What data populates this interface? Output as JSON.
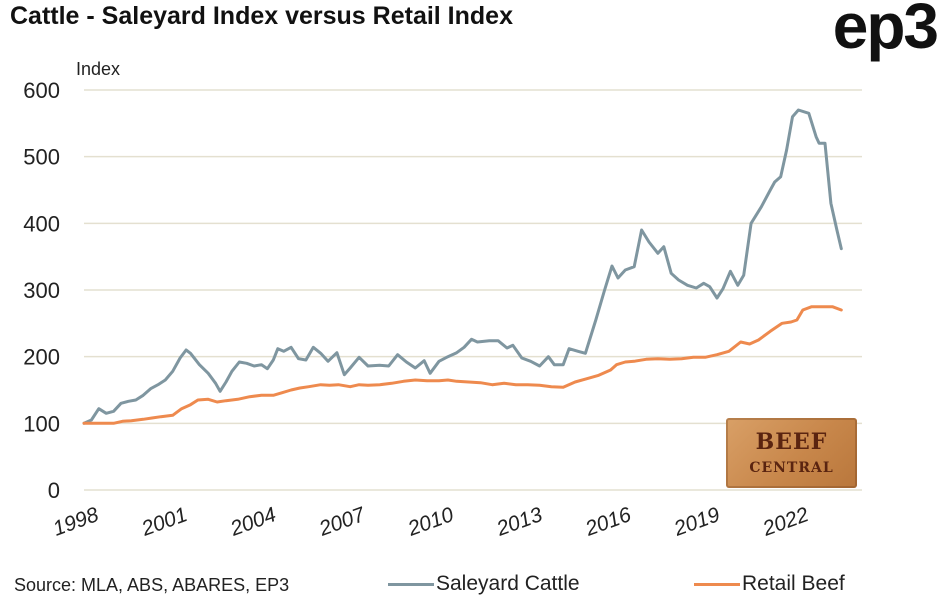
{
  "title": "Cattle - Saleyard Index versus Retail Index",
  "logo": "ep3",
  "source": "Source: MLA, ABS, ABARES, EP3",
  "badge": {
    "line1": "BEEF",
    "line2": "CENTRAL"
  },
  "colors": {
    "saleyard": "#7f96a0",
    "retail": "#ee8a4e",
    "grid": "#e4e0d0"
  },
  "chart_data": {
    "type": "line",
    "title": "Cattle - Saleyard Index versus Retail Index",
    "ylabel": "Index",
    "xlabel": "",
    "ylim": [
      0,
      600
    ],
    "xlim": [
      1998,
      2024.3
    ],
    "yticks": [
      0,
      100,
      200,
      300,
      400,
      500,
      600
    ],
    "xticks": [
      "1998",
      "2001",
      "2004",
      "2007",
      "2010",
      "2013",
      "2016",
      "2019",
      "2022"
    ],
    "grid": true,
    "legend": "bottom",
    "series": [
      {
        "name": "Saleyard Cattle",
        "color": "#7f96a0",
        "points": [
          [
            1998.0,
            100
          ],
          [
            1998.25,
            105
          ],
          [
            1998.5,
            122
          ],
          [
            1998.75,
            115
          ],
          [
            1999.0,
            118
          ],
          [
            1999.25,
            130
          ],
          [
            1999.5,
            133
          ],
          [
            1999.75,
            135
          ],
          [
            2000.0,
            142
          ],
          [
            2000.25,
            152
          ],
          [
            2000.5,
            158
          ],
          [
            2000.75,
            165
          ],
          [
            2001.0,
            178
          ],
          [
            2001.25,
            198
          ],
          [
            2001.45,
            210
          ],
          [
            2001.6,
            205
          ],
          [
            2001.9,
            188
          ],
          [
            2002.2,
            175
          ],
          [
            2002.45,
            160
          ],
          [
            2002.6,
            148
          ],
          [
            2002.8,
            162
          ],
          [
            2003.0,
            178
          ],
          [
            2003.25,
            192
          ],
          [
            2003.5,
            190
          ],
          [
            2003.75,
            186
          ],
          [
            2004.0,
            188
          ],
          [
            2004.2,
            182
          ],
          [
            2004.4,
            195
          ],
          [
            2004.55,
            212
          ],
          [
            2004.75,
            208
          ],
          [
            2005.0,
            214
          ],
          [
            2005.25,
            197
          ],
          [
            2005.5,
            195
          ],
          [
            2005.75,
            214
          ],
          [
            2006.0,
            205
          ],
          [
            2006.25,
            193
          ],
          [
            2006.55,
            206
          ],
          [
            2006.8,
            173
          ],
          [
            2007.0,
            183
          ],
          [
            2007.3,
            199
          ],
          [
            2007.6,
            186
          ],
          [
            2008.0,
            187
          ],
          [
            2008.3,
            186
          ],
          [
            2008.6,
            203
          ],
          [
            2008.9,
            192
          ],
          [
            2009.2,
            183
          ],
          [
            2009.5,
            194
          ],
          [
            2009.7,
            175
          ],
          [
            2010.0,
            193
          ],
          [
            2010.3,
            200
          ],
          [
            2010.6,
            206
          ],
          [
            2010.85,
            214
          ],
          [
            2011.1,
            226
          ],
          [
            2011.3,
            222
          ],
          [
            2011.7,
            224
          ],
          [
            2012.0,
            224
          ],
          [
            2012.3,
            213
          ],
          [
            2012.5,
            217
          ],
          [
            2012.8,
            198
          ],
          [
            2013.1,
            193
          ],
          [
            2013.4,
            186
          ],
          [
            2013.7,
            200
          ],
          [
            2013.9,
            188
          ],
          [
            2014.2,
            188
          ],
          [
            2014.4,
            212
          ],
          [
            2014.7,
            208
          ],
          [
            2014.95,
            205
          ],
          [
            2015.3,
            255
          ],
          [
            2015.6,
            300
          ],
          [
            2015.85,
            336
          ],
          [
            2016.05,
            318
          ],
          [
            2016.3,
            330
          ],
          [
            2016.6,
            335
          ],
          [
            2016.85,
            390
          ],
          [
            2017.1,
            372
          ],
          [
            2017.4,
            355
          ],
          [
            2017.6,
            365
          ],
          [
            2017.85,
            325
          ],
          [
            2018.1,
            315
          ],
          [
            2018.4,
            307
          ],
          [
            2018.7,
            303
          ],
          [
            2018.95,
            310
          ],
          [
            2019.15,
            305
          ],
          [
            2019.4,
            288
          ],
          [
            2019.6,
            302
          ],
          [
            2019.85,
            328
          ],
          [
            2020.1,
            307
          ],
          [
            2020.3,
            322
          ],
          [
            2020.55,
            400
          ],
          [
            2020.9,
            425
          ],
          [
            2021.2,
            450
          ],
          [
            2021.35,
            462
          ],
          [
            2021.55,
            470
          ],
          [
            2021.75,
            510
          ],
          [
            2021.95,
            560
          ],
          [
            2022.15,
            570
          ],
          [
            2022.5,
            565
          ],
          [
            2022.75,
            530
          ],
          [
            2022.85,
            520
          ],
          [
            2023.05,
            520
          ],
          [
            2023.25,
            430
          ],
          [
            2023.45,
            390
          ],
          [
            2023.6,
            362
          ]
        ]
      },
      {
        "name": "Retail Beef",
        "color": "#ee8a4e",
        "points": [
          [
            1998.0,
            100
          ],
          [
            1998.5,
            100
          ],
          [
            1999.0,
            100
          ],
          [
            1999.3,
            103
          ],
          [
            1999.6,
            104
          ],
          [
            2000.0,
            106
          ],
          [
            2000.3,
            108
          ],
          [
            2000.6,
            110
          ],
          [
            2001.0,
            112
          ],
          [
            2001.3,
            122
          ],
          [
            2001.6,
            128
          ],
          [
            2001.85,
            135
          ],
          [
            2002.2,
            136
          ],
          [
            2002.5,
            132
          ],
          [
            2002.8,
            134
          ],
          [
            2003.2,
            136
          ],
          [
            2003.6,
            140
          ],
          [
            2004.0,
            142
          ],
          [
            2004.4,
            142
          ],
          [
            2004.7,
            146
          ],
          [
            2005.0,
            150
          ],
          [
            2005.3,
            153
          ],
          [
            2005.6,
            155
          ],
          [
            2006.0,
            158
          ],
          [
            2006.3,
            157
          ],
          [
            2006.6,
            158
          ],
          [
            2007.0,
            155
          ],
          [
            2007.3,
            158
          ],
          [
            2007.6,
            157
          ],
          [
            2008.0,
            158
          ],
          [
            2008.4,
            160
          ],
          [
            2008.8,
            163
          ],
          [
            2009.2,
            165
          ],
          [
            2009.6,
            164
          ],
          [
            2010.0,
            164
          ],
          [
            2010.3,
            165
          ],
          [
            2010.6,
            163
          ],
          [
            2011.0,
            162
          ],
          [
            2011.4,
            161
          ],
          [
            2011.8,
            158
          ],
          [
            2012.2,
            160
          ],
          [
            2012.6,
            158
          ],
          [
            2013.0,
            158
          ],
          [
            2013.4,
            157
          ],
          [
            2013.8,
            155
          ],
          [
            2014.2,
            154
          ],
          [
            2014.6,
            162
          ],
          [
            2015.0,
            167
          ],
          [
            2015.4,
            172
          ],
          [
            2015.8,
            180
          ],
          [
            2016.0,
            188
          ],
          [
            2016.3,
            192
          ],
          [
            2016.6,
            193
          ],
          [
            2017.0,
            196
          ],
          [
            2017.4,
            197
          ],
          [
            2017.8,
            196
          ],
          [
            2018.2,
            197
          ],
          [
            2018.6,
            199
          ],
          [
            2019.0,
            199
          ],
          [
            2019.4,
            203
          ],
          [
            2019.8,
            208
          ],
          [
            2020.2,
            222
          ],
          [
            2020.5,
            219
          ],
          [
            2020.8,
            225
          ],
          [
            2021.2,
            238
          ],
          [
            2021.6,
            250
          ],
          [
            2021.9,
            252
          ],
          [
            2022.1,
            255
          ],
          [
            2022.3,
            270
          ],
          [
            2022.6,
            275
          ],
          [
            2023.0,
            275
          ],
          [
            2023.3,
            275
          ],
          [
            2023.6,
            270
          ]
        ]
      }
    ]
  }
}
